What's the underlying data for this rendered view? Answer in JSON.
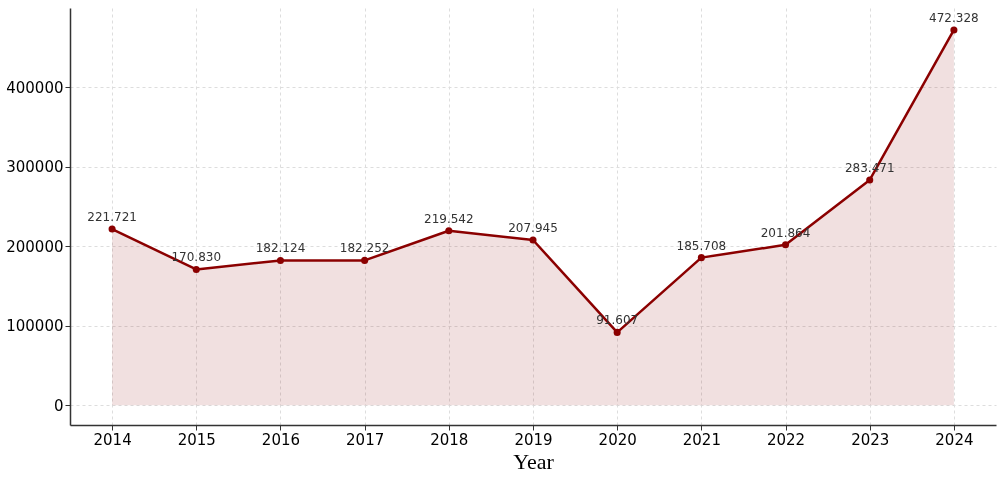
{
  "chart_data": {
    "type": "area",
    "xlabel": "Year",
    "x": [
      2014,
      2015,
      2016,
      2017,
      2018,
      2019,
      2020,
      2021,
      2022,
      2023,
      2024
    ],
    "series": [
      {
        "color": "#8b0000",
        "values": [
          221721,
          170830,
          182124,
          182252,
          219542,
          207945,
          91607,
          185708,
          201864,
          283471,
          472328
        ],
        "value_labels": [
          "221.721",
          "170.830",
          "182.124",
          "182.252",
          "219.542",
          "207.945",
          "91.607",
          "185.708",
          "201.864",
          "283.471",
          "472.328"
        ]
      }
    ],
    "xlim": [
      2013.5,
      2024.5
    ],
    "xticks": [
      2014,
      2015,
      2016,
      2017,
      2018,
      2019,
      2020,
      2021,
      2022,
      2023,
      2024
    ],
    "ylim": [
      -25000,
      500000
    ],
    "yticks": [
      0,
      100000,
      200000,
      300000,
      400000
    ],
    "grid": true,
    "marker": "circle",
    "line_style": "solid"
  }
}
